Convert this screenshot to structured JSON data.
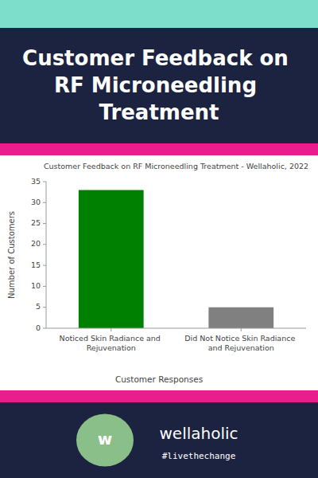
{
  "chart_data": {
    "type": "bar",
    "title": "Customer Feedback on RF Microneedling Treatment - Wellaholic, 2022",
    "header_title": "Customer Feedback on\nRF Microneedling\nTreatment",
    "categories": [
      "Noticed Skin Radiance and Rejuvenation",
      "Did Not Notice Skin Radiance and Rejuvenation"
    ],
    "values": [
      33,
      5
    ],
    "colors": [
      "#008000",
      "#808080"
    ],
    "xlabel": "Customer Responses",
    "ylabel": "Number of Customers",
    "ylim": [
      0,
      35
    ],
    "yticks": [
      0,
      5,
      10,
      15,
      20,
      25,
      30,
      35
    ],
    "grid": false,
    "annotations": [
      "wellaholic",
      "#livethechange",
      "w"
    ]
  }
}
